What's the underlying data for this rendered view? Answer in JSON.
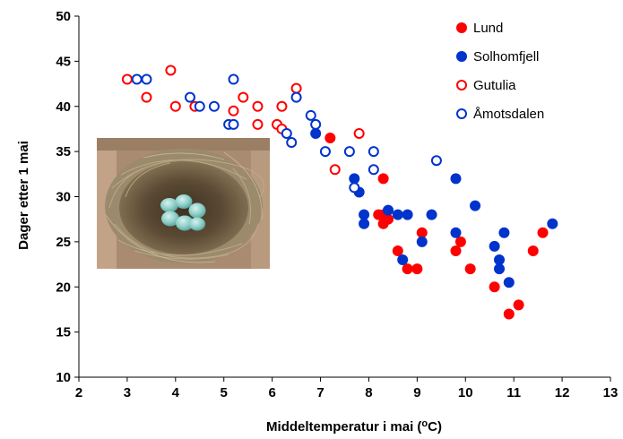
{
  "chart_data": {
    "type": "scatter",
    "title": "",
    "xlabel": "Middeltemperatur i mai (",
    "xlabel_sup": "o",
    "xlabel_end": "C)",
    "ylabel": "Dager etter 1 mai",
    "xlim": [
      2,
      13
    ],
    "ylim": [
      10,
      50
    ],
    "x_ticks": [
      "2",
      "3",
      "4",
      "5",
      "6",
      "7",
      "8",
      "9",
      "10",
      "11",
      "12",
      "13"
    ],
    "y_ticks": [
      "10",
      "15",
      "20",
      "25",
      "30",
      "35",
      "40",
      "45",
      "50"
    ],
    "grid": false,
    "legend_position": "top-right",
    "series": [
      {
        "name": "Lund",
        "color": "#ff0000",
        "filled": true,
        "points": [
          [
            7.2,
            36.5
          ],
          [
            8.2,
            28
          ],
          [
            8.3,
            27
          ],
          [
            8.3,
            32
          ],
          [
            8.3,
            28
          ],
          [
            8.4,
            27.5
          ],
          [
            8.6,
            24
          ],
          [
            8.8,
            22
          ],
          [
            9.0,
            22
          ],
          [
            9.1,
            26
          ],
          [
            9.8,
            24
          ],
          [
            9.9,
            25
          ],
          [
            10.1,
            22
          ],
          [
            10.6,
            20
          ],
          [
            10.9,
            17
          ],
          [
            11.1,
            18
          ],
          [
            11.4,
            24
          ],
          [
            11.6,
            26
          ]
        ]
      },
      {
        "name": "Solhomfjell",
        "color": "#0033cc",
        "filled": true,
        "points": [
          [
            6.9,
            37
          ],
          [
            7.7,
            32
          ],
          [
            7.8,
            30.5
          ],
          [
            7.9,
            27
          ],
          [
            7.9,
            28
          ],
          [
            8.4,
            28.5
          ],
          [
            8.6,
            28
          ],
          [
            8.7,
            23
          ],
          [
            8.8,
            28
          ],
          [
            9.1,
            25
          ],
          [
            9.3,
            28
          ],
          [
            9.8,
            32
          ],
          [
            9.8,
            26
          ],
          [
            10.2,
            29
          ],
          [
            10.6,
            24.5
          ],
          [
            10.7,
            23
          ],
          [
            10.7,
            22
          ],
          [
            10.8,
            26
          ],
          [
            10.9,
            20.5
          ],
          [
            11.8,
            27
          ]
        ]
      },
      {
        "name": "Gutulia",
        "color": "#ff0000",
        "filled": false,
        "points": [
          [
            3.0,
            43
          ],
          [
            3.4,
            41
          ],
          [
            3.9,
            44
          ],
          [
            4.0,
            40
          ],
          [
            4.4,
            40
          ],
          [
            5.2,
            39.5
          ],
          [
            5.4,
            41
          ],
          [
            5.7,
            40
          ],
          [
            5.7,
            38
          ],
          [
            6.1,
            38
          ],
          [
            6.2,
            40
          ],
          [
            6.2,
            37.5
          ],
          [
            6.5,
            42
          ],
          [
            7.3,
            33
          ],
          [
            7.8,
            37
          ]
        ]
      },
      {
        "name": "Åmotsdalen",
        "color": "#0033cc",
        "filled": false,
        "points": [
          [
            3.2,
            43
          ],
          [
            3.4,
            43
          ],
          [
            4.3,
            41
          ],
          [
            4.5,
            40
          ],
          [
            4.8,
            40
          ],
          [
            5.1,
            38
          ],
          [
            5.2,
            38
          ],
          [
            5.2,
            43
          ],
          [
            6.3,
            37
          ],
          [
            6.4,
            36
          ],
          [
            6.5,
            41
          ],
          [
            6.8,
            39
          ],
          [
            6.9,
            38
          ],
          [
            7.1,
            35
          ],
          [
            7.6,
            35
          ],
          [
            7.7,
            31
          ],
          [
            8.1,
            35
          ],
          [
            8.1,
            33
          ],
          [
            9.4,
            34
          ]
        ]
      }
    ]
  },
  "photo": {
    "description_icon": "nest-with-eggs-photo"
  }
}
